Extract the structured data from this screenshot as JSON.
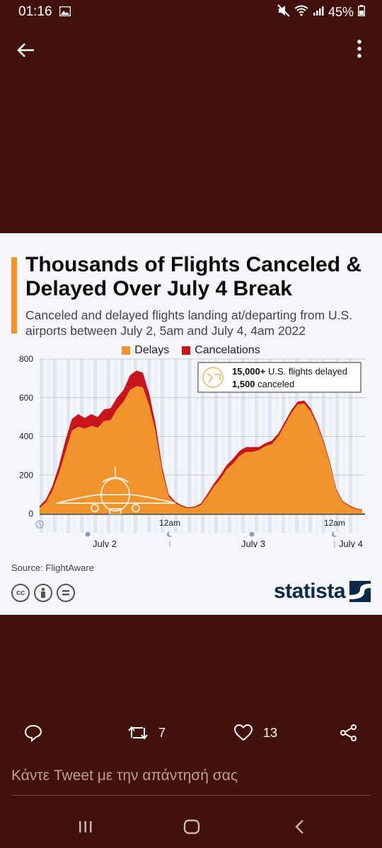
{
  "status_bar": {
    "time": "01:16",
    "battery": "45%"
  },
  "tweet_media": {
    "title": "Thousands of Flights Canceled & Delayed Over July 4 Break",
    "subtitle": "Canceled and delayed flights landing at/departing from U.S. airports between July 2, 5am and July 4, 4am 2022",
    "annotation_line1_bold": "15,000+",
    "annotation_line1_rest": " U.S. flights delayed",
    "annotation_line2_bold": "1,500",
    "annotation_line2_rest": " canceled",
    "source": "Source: FlightAware",
    "brand": "statista"
  },
  "chart_data": {
    "type": "area",
    "stacked": true,
    "ylim": [
      0,
      800
    ],
    "yticks": [
      0,
      200,
      400,
      600,
      800
    ],
    "x_labels": [
      "July 2",
      "12am",
      "July 3",
      "12am",
      "July 4"
    ],
    "legend": [
      "Delays",
      "Cancelations"
    ],
    "colors": {
      "delays": "#f0932b",
      "cancelations": "#c8141b"
    },
    "series": [
      {
        "name": "Delays",
        "values": [
          30,
          60,
          120,
          210,
          320,
          430,
          450,
          440,
          455,
          445,
          480,
          485,
          540,
          580,
          640,
          660,
          655,
          560,
          420,
          220,
          90,
          55,
          38,
          28,
          32,
          45,
          90,
          140,
          180,
          230,
          260,
          300,
          320,
          320,
          330,
          350,
          360,
          400,
          460,
          520,
          565,
          570,
          530,
          460,
          370,
          260,
          120,
          60,
          40,
          25,
          20
        ]
      },
      {
        "name": "Cancelations",
        "values": [
          10,
          15,
          25,
          40,
          60,
          60,
          65,
          55,
          60,
          55,
          60,
          60,
          60,
          60,
          75,
          80,
          75,
          60,
          40,
          20,
          10,
          8,
          6,
          5,
          5,
          8,
          12,
          15,
          20,
          22,
          25,
          25,
          25,
          25,
          15,
          15,
          18,
          15,
          15,
          15,
          15,
          15,
          15,
          12,
          10,
          8,
          6,
          5,
          4,
          3,
          3
        ]
      }
    ]
  },
  "actions": {
    "retweets": "7",
    "likes": "13"
  },
  "reply_placeholder": "Κάντε Tweet με την απάντησή σας"
}
